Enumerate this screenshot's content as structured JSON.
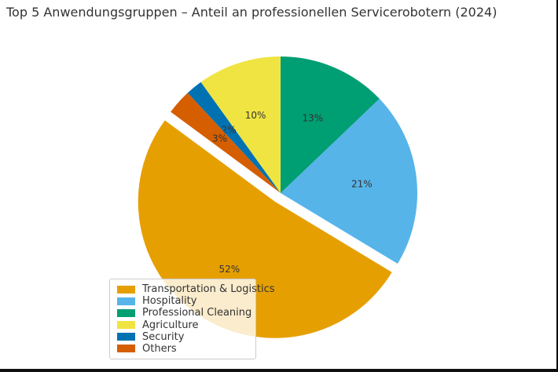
{
  "title": "Top 5 Anwendungsgruppen – Anteil an professionellen Servicerobotern (2024)",
  "chart_data": {
    "type": "pie",
    "title": "Top 5 Anwendungsgruppen – Anteil an professionellen Servicerobotern (2024)",
    "categories": [
      "Transportation & Logistics",
      "Hospitality",
      "Professional Cleaning",
      "Agriculture",
      "Security",
      "Others"
    ],
    "values": [
      52,
      21,
      13,
      10,
      2,
      3
    ],
    "unit": "%",
    "pct_labels": [
      "52%",
      "21%",
      "13%",
      "10%",
      "2%",
      "3%"
    ],
    "colors": [
      "#e69f00",
      "#56b4e9",
      "#009e73",
      "#f0e442",
      "#0072b2",
      "#d55e00"
    ],
    "start_angle_deg": 143.5,
    "direction": "counterclockwise",
    "explode": [
      0.075,
      0,
      0,
      0,
      0,
      0
    ],
    "legend_position": "lower-left",
    "label_color": "#333333",
    "title_color": "#333333",
    "background": "#ffffff"
  }
}
